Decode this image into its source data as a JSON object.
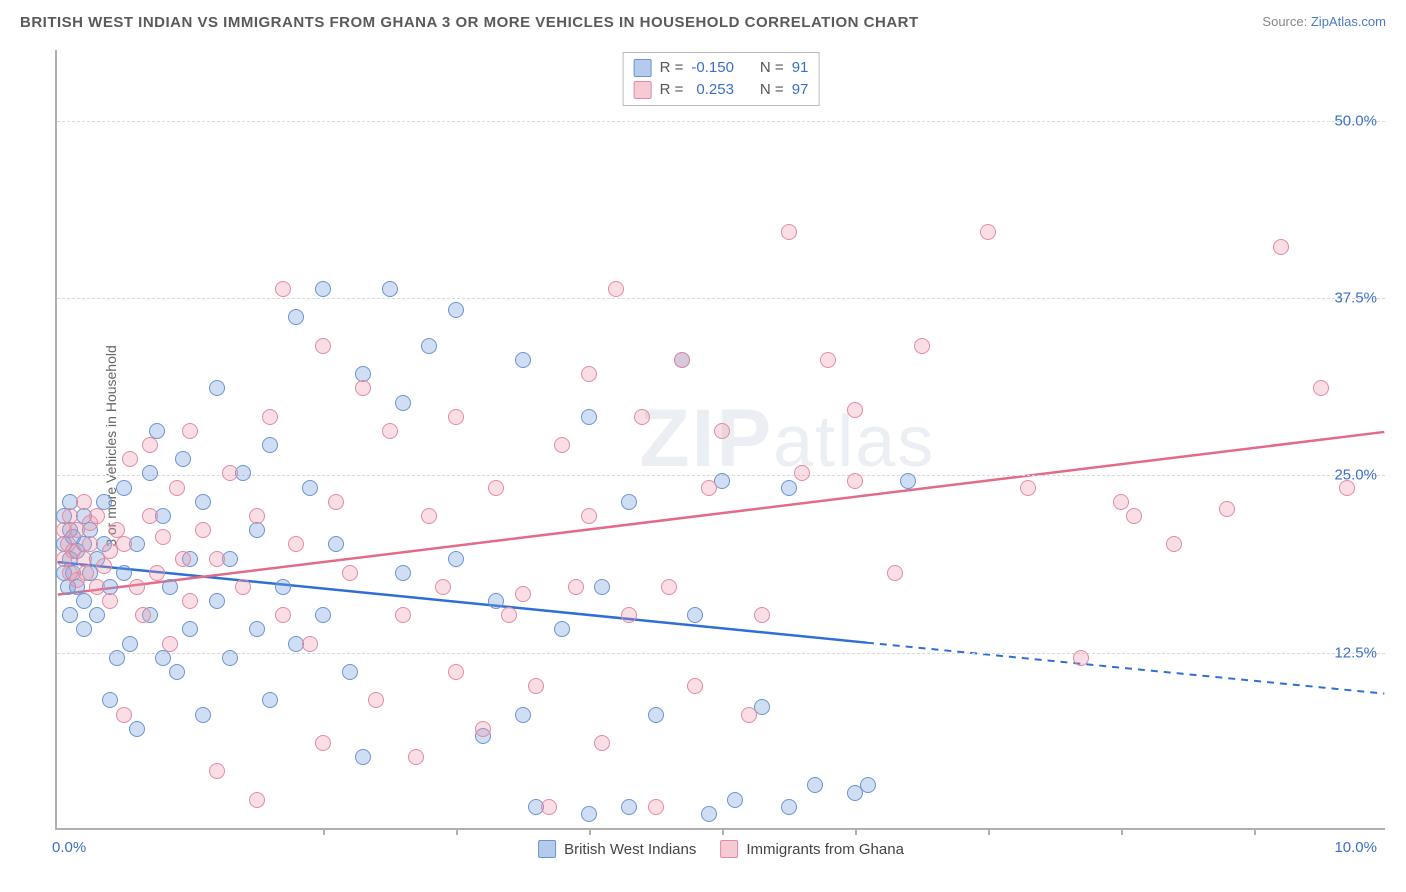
{
  "title": "BRITISH WEST INDIAN VS IMMIGRANTS FROM GHANA 3 OR MORE VEHICLES IN HOUSEHOLD CORRELATION CHART",
  "source": {
    "label": "Source:",
    "site": "ZipAtlas.com"
  },
  "ylabel": "3 or more Vehicles in Household",
  "watermark": "ZIPatlas",
  "chart": {
    "type": "scatter",
    "xlim": [
      0,
      10
    ],
    "ylim": [
      0,
      55
    ],
    "x_ticks_label_left": "0.0%",
    "x_ticks_label_right": "10.0%",
    "x_minor_ticks": [
      2,
      3,
      4,
      5,
      6,
      7,
      8,
      9
    ],
    "y_gridlines": [
      12.5,
      25.0,
      37.5,
      50.0
    ],
    "y_tick_format": "%.1f%%",
    "background_color": "#ffffff",
    "grid_color": "#d9d9d9",
    "axis_color": "#b0b0b0"
  },
  "series": [
    {
      "name": "British West Indians",
      "color_fill": "rgba(120,160,220,0.35)",
      "color_stroke": "#6a94d4",
      "trend_color": "#2e6fd4",
      "R": "-0.150",
      "N": "91",
      "trend": {
        "x1": 0,
        "y1": 18.8,
        "x2_solid": 6.1,
        "y2_solid": 13.1,
        "x2": 10,
        "y2": 9.5
      },
      "points": [
        [
          0.05,
          18
        ],
        [
          0.05,
          20
        ],
        [
          0.05,
          22
        ],
        [
          0.08,
          17
        ],
        [
          0.1,
          19
        ],
        [
          0.1,
          21
        ],
        [
          0.1,
          23
        ],
        [
          0.1,
          15
        ],
        [
          0.12,
          18
        ],
        [
          0.12,
          20.5
        ],
        [
          0.15,
          19.5
        ],
        [
          0.15,
          17
        ],
        [
          0.2,
          20
        ],
        [
          0.2,
          22
        ],
        [
          0.2,
          16
        ],
        [
          0.2,
          14
        ],
        [
          0.25,
          18
        ],
        [
          0.25,
          21
        ],
        [
          0.3,
          19
        ],
        [
          0.3,
          15
        ],
        [
          0.35,
          20
        ],
        [
          0.35,
          23
        ],
        [
          0.4,
          9
        ],
        [
          0.4,
          17
        ],
        [
          0.45,
          12
        ],
        [
          0.5,
          18
        ],
        [
          0.5,
          24
        ],
        [
          0.55,
          13
        ],
        [
          0.6,
          20
        ],
        [
          0.6,
          7
        ],
        [
          0.7,
          25
        ],
        [
          0.7,
          15
        ],
        [
          0.75,
          28
        ],
        [
          0.8,
          12
        ],
        [
          0.8,
          22
        ],
        [
          0.85,
          17
        ],
        [
          0.9,
          11
        ],
        [
          0.95,
          26
        ],
        [
          1.0,
          19
        ],
        [
          1.0,
          14
        ],
        [
          1.1,
          23
        ],
        [
          1.1,
          8
        ],
        [
          1.2,
          31
        ],
        [
          1.2,
          16
        ],
        [
          1.3,
          19
        ],
        [
          1.3,
          12
        ],
        [
          1.4,
          25
        ],
        [
          1.5,
          14
        ],
        [
          1.5,
          21
        ],
        [
          1.6,
          9
        ],
        [
          1.6,
          27
        ],
        [
          1.7,
          17
        ],
        [
          1.8,
          36
        ],
        [
          1.8,
          13
        ],
        [
          1.9,
          24
        ],
        [
          2.0,
          38
        ],
        [
          2.0,
          15
        ],
        [
          2.1,
          20
        ],
        [
          2.2,
          11
        ],
        [
          2.3,
          32
        ],
        [
          2.3,
          5
        ],
        [
          2.5,
          38
        ],
        [
          2.6,
          30
        ],
        [
          2.6,
          18
        ],
        [
          2.8,
          34
        ],
        [
          3.0,
          19
        ],
        [
          3.0,
          36.5
        ],
        [
          3.2,
          6.5
        ],
        [
          3.3,
          16
        ],
        [
          3.5,
          33
        ],
        [
          3.5,
          8
        ],
        [
          3.6,
          1.5
        ],
        [
          3.8,
          14
        ],
        [
          4.0,
          29
        ],
        [
          4.0,
          1
        ],
        [
          4.1,
          17
        ],
        [
          4.3,
          23
        ],
        [
          4.3,
          1.5
        ],
        [
          4.5,
          8
        ],
        [
          4.7,
          33
        ],
        [
          4.8,
          15
        ],
        [
          4.9,
          1
        ],
        [
          5.0,
          24.5
        ],
        [
          5.1,
          2
        ],
        [
          5.3,
          8.5
        ],
        [
          5.5,
          24
        ],
        [
          5.5,
          1.5
        ],
        [
          5.7,
          3
        ],
        [
          6.0,
          2.5
        ],
        [
          6.1,
          3
        ],
        [
          6.4,
          24.5
        ]
      ]
    },
    {
      "name": "Immigrants from Ghana",
      "color_fill": "rgba(235,150,170,0.3)",
      "color_stroke": "#e48aa0",
      "trend_color": "#e36b8a",
      "R": "0.253",
      "N": "97",
      "trend": {
        "x1": 0,
        "y1": 16.5,
        "x2_solid": 10,
        "y2_solid": 28.0,
        "x2": 10,
        "y2": 28.0
      },
      "points": [
        [
          0.05,
          19
        ],
        [
          0.05,
          21
        ],
        [
          0.08,
          20
        ],
        [
          0.1,
          18
        ],
        [
          0.1,
          22
        ],
        [
          0.12,
          19.5
        ],
        [
          0.15,
          17.5
        ],
        [
          0.15,
          21
        ],
        [
          0.2,
          19
        ],
        [
          0.2,
          23
        ],
        [
          0.22,
          18
        ],
        [
          0.25,
          20
        ],
        [
          0.25,
          21.5
        ],
        [
          0.3,
          17
        ],
        [
          0.3,
          22
        ],
        [
          0.35,
          18.5
        ],
        [
          0.4,
          19.5
        ],
        [
          0.4,
          16
        ],
        [
          0.45,
          21
        ],
        [
          0.5,
          8
        ],
        [
          0.5,
          20
        ],
        [
          0.55,
          26
        ],
        [
          0.6,
          17
        ],
        [
          0.65,
          15
        ],
        [
          0.7,
          22
        ],
        [
          0.7,
          27
        ],
        [
          0.75,
          18
        ],
        [
          0.8,
          20.5
        ],
        [
          0.85,
          13
        ],
        [
          0.9,
          24
        ],
        [
          0.95,
          19
        ],
        [
          1.0,
          28
        ],
        [
          1.0,
          16
        ],
        [
          1.1,
          21
        ],
        [
          1.2,
          4
        ],
        [
          1.2,
          19
        ],
        [
          1.3,
          25
        ],
        [
          1.4,
          17
        ],
        [
          1.5,
          2
        ],
        [
          1.5,
          22
        ],
        [
          1.6,
          29
        ],
        [
          1.7,
          15
        ],
        [
          1.7,
          38
        ],
        [
          1.8,
          20
        ],
        [
          1.9,
          13
        ],
        [
          2.0,
          34
        ],
        [
          2.0,
          6
        ],
        [
          2.1,
          23
        ],
        [
          2.2,
          18
        ],
        [
          2.3,
          31
        ],
        [
          2.4,
          9
        ],
        [
          2.5,
          28
        ],
        [
          2.6,
          15
        ],
        [
          2.7,
          5
        ],
        [
          2.8,
          22
        ],
        [
          2.9,
          17
        ],
        [
          3.0,
          29
        ],
        [
          3.0,
          11
        ],
        [
          3.2,
          7
        ],
        [
          3.3,
          24
        ],
        [
          3.4,
          15
        ],
        [
          3.5,
          16.5
        ],
        [
          3.6,
          10
        ],
        [
          3.7,
          1.5
        ],
        [
          3.8,
          27
        ],
        [
          3.9,
          17
        ],
        [
          4.0,
          22
        ],
        [
          4.0,
          32
        ],
        [
          4.1,
          6
        ],
        [
          4.2,
          38
        ],
        [
          4.3,
          15
        ],
        [
          4.4,
          29
        ],
        [
          4.5,
          1.5
        ],
        [
          4.6,
          17
        ],
        [
          4.7,
          33
        ],
        [
          4.8,
          10
        ],
        [
          4.9,
          24
        ],
        [
          5.0,
          28
        ],
        [
          5.2,
          8
        ],
        [
          5.3,
          15
        ],
        [
          5.5,
          42
        ],
        [
          5.6,
          25
        ],
        [
          5.8,
          33
        ],
        [
          6.0,
          29.5
        ],
        [
          6.0,
          24.5
        ],
        [
          6.3,
          18
        ],
        [
          6.5,
          34
        ],
        [
          7.0,
          42
        ],
        [
          7.3,
          24
        ],
        [
          7.7,
          12
        ],
        [
          8.0,
          23
        ],
        [
          8.1,
          22
        ],
        [
          8.4,
          20
        ],
        [
          8.8,
          22.5
        ],
        [
          9.2,
          41
        ],
        [
          9.5,
          31
        ],
        [
          9.7,
          24
        ]
      ]
    }
  ],
  "legend_top": {
    "R_label": "R =",
    "N_label": "N ="
  },
  "legend_bottom": [
    {
      "label": "British West Indians",
      "swatch": "blue"
    },
    {
      "label": "Immigrants from Ghana",
      "swatch": "pink"
    }
  ]
}
